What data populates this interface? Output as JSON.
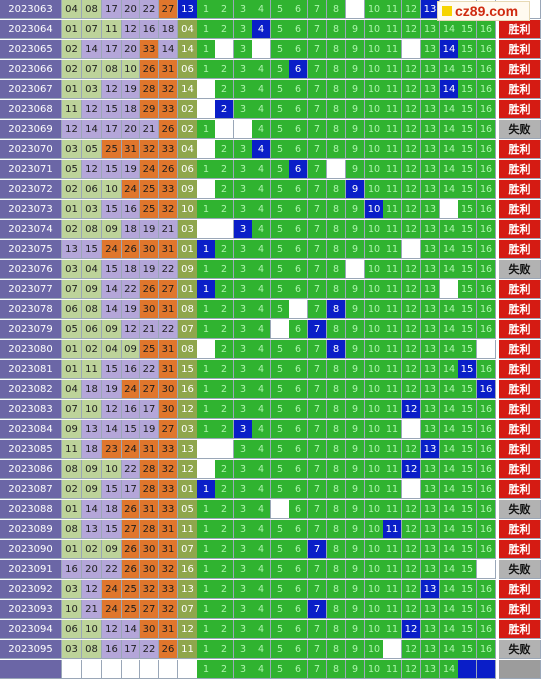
{
  "logo": {
    "text": "cz89.com"
  },
  "labels": {
    "win": "胜利",
    "lose": "失败"
  },
  "colors": {
    "issue_bg": "#6b66a6",
    "zone_sage": "#bdd39a",
    "zone_lavender": "#b4a6d9",
    "zone_orange": "#e0762c",
    "zone_olive": "#8fa64c",
    "blue": "#0a1ec8",
    "green": "#30b330",
    "win": "#d51b13",
    "lose": "#b2b2b2"
  },
  "header_row": {
    "issue": "2023063",
    "balls": [
      "04",
      "08",
      "17",
      "20",
      "22",
      "27"
    ],
    "blue": "13",
    "cells": [
      {
        "n": "1"
      },
      {
        "n": "2"
      },
      {
        "n": "3"
      },
      {
        "n": "4"
      },
      {
        "n": "5"
      },
      {
        "n": "6"
      },
      {
        "n": "7"
      },
      {
        "n": "8"
      },
      {
        "n": "",
        "empty": true
      },
      {
        "n": "10"
      },
      {
        "n": "11"
      },
      {
        "n": "12"
      },
      {
        "n": "13",
        "hit": true
      },
      {
        "n": "",
        "empty": true
      },
      {
        "n": "",
        "empty": true
      },
      {
        "n": "",
        "empty": true
      }
    ],
    "result": ""
  },
  "rows": [
    {
      "issue": "2023064",
      "balls": [
        "01",
        "07",
        "11",
        "12",
        "16",
        "18"
      ],
      "blue": "04",
      "hit": 4,
      "empties": [],
      "result": "win"
    },
    {
      "issue": "2023065",
      "balls": [
        "02",
        "14",
        "17",
        "20",
        "33",
        "14"
      ],
      "blue": "14",
      "hit": 14,
      "empties": [
        2,
        4,
        12
      ],
      "result": "win"
    },
    {
      "issue": "2023066",
      "balls": [
        "02",
        "07",
        "08",
        "10",
        "26",
        "31"
      ],
      "blue": "06",
      "hit": 6,
      "empties": [],
      "result": "win"
    },
    {
      "issue": "2023067",
      "balls": [
        "01",
        "03",
        "12",
        "19",
        "28",
        "32"
      ],
      "blue": "14",
      "hit": 14,
      "empties": [
        1
      ],
      "result": "win"
    },
    {
      "issue": "2023068",
      "balls": [
        "11",
        "12",
        "15",
        "18",
        "29",
        "33"
      ],
      "blue": "02",
      "hit": 2,
      "empties": [
        1
      ],
      "result": "win"
    },
    {
      "issue": "2023069",
      "balls": [
        "12",
        "14",
        "17",
        "20",
        "21",
        "26"
      ],
      "blue": "02",
      "hit": 0,
      "empties": [
        2,
        3
      ],
      "result": "lose"
    },
    {
      "issue": "2023070",
      "balls": [
        "03",
        "05",
        "25",
        "31",
        "32",
        "33"
      ],
      "blue": "04",
      "hit": 4,
      "empties": [
        1
      ],
      "result": "win"
    },
    {
      "issue": "2023071",
      "balls": [
        "05",
        "12",
        "15",
        "19",
        "24",
        "26"
      ],
      "blue": "06",
      "hit": 6,
      "empties": [
        8
      ],
      "result": "win"
    },
    {
      "issue": "2023072",
      "balls": [
        "02",
        "06",
        "10",
        "24",
        "25",
        "33"
      ],
      "blue": "09",
      "hit": 9,
      "empties": [
        1
      ],
      "result": "win"
    },
    {
      "issue": "2023073",
      "balls": [
        "01",
        "03",
        "15",
        "16",
        "25",
        "32"
      ],
      "blue": "10",
      "hit": 10,
      "empties": [
        14
      ],
      "result": "win"
    },
    {
      "issue": "2023074",
      "balls": [
        "02",
        "08",
        "09",
        "18",
        "19",
        "21"
      ],
      "blue": "03",
      "hit": 3,
      "empties": [
        1,
        2
      ],
      "result": "win"
    },
    {
      "issue": "2023075",
      "balls": [
        "13",
        "15",
        "24",
        "26",
        "30",
        "31"
      ],
      "blue": "01",
      "hit": 1,
      "empties": [
        12
      ],
      "result": "win"
    },
    {
      "issue": "2023076",
      "balls": [
        "03",
        "04",
        "15",
        "18",
        "19",
        "22"
      ],
      "blue": "09",
      "hit": 0,
      "empties": [
        9
      ],
      "result": "lose"
    },
    {
      "issue": "2023077",
      "balls": [
        "07",
        "09",
        "14",
        "22",
        "26",
        "27"
      ],
      "blue": "01",
      "hit": 1,
      "empties": [
        14
      ],
      "result": "win"
    },
    {
      "issue": "2023078",
      "balls": [
        "06",
        "08",
        "14",
        "19",
        "30",
        "31"
      ],
      "blue": "08",
      "hit": 8,
      "empties": [
        6
      ],
      "result": "win"
    },
    {
      "issue": "2023079",
      "balls": [
        "05",
        "06",
        "09",
        "12",
        "21",
        "22"
      ],
      "blue": "07",
      "hit": 7,
      "empties": [
        5
      ],
      "result": "win"
    },
    {
      "issue": "2023080",
      "balls": [
        "01",
        "02",
        "04",
        "09",
        "25",
        "31"
      ],
      "blue": "08",
      "hit": 8,
      "empties": [
        1,
        16
      ],
      "result": "win"
    },
    {
      "issue": "2023081",
      "balls": [
        "01",
        "11",
        "15",
        "16",
        "22",
        "31"
      ],
      "blue": "15",
      "hit": 15,
      "empties": [],
      "result": "win"
    },
    {
      "issue": "2023082",
      "balls": [
        "04",
        "18",
        "19",
        "24",
        "27",
        "30"
      ],
      "blue": "16",
      "hit": 16,
      "empties": [],
      "result": "win"
    },
    {
      "issue": "2023083",
      "balls": [
        "07",
        "10",
        "12",
        "16",
        "17",
        "30"
      ],
      "blue": "12",
      "hit": 12,
      "empties": [],
      "result": "win"
    },
    {
      "issue": "2023084",
      "balls": [
        "09",
        "13",
        "14",
        "15",
        "19",
        "27"
      ],
      "blue": "03",
      "hit": 3,
      "empties": [
        12
      ],
      "result": "win"
    },
    {
      "issue": "2023085",
      "balls": [
        "11",
        "18",
        "23",
        "24",
        "31",
        "33"
      ],
      "blue": "13",
      "hit": 13,
      "empties": [
        1,
        2
      ],
      "result": "win"
    },
    {
      "issue": "2023086",
      "balls": [
        "08",
        "09",
        "10",
        "22",
        "28",
        "32"
      ],
      "blue": "12",
      "hit": 12,
      "empties": [
        1
      ],
      "result": "win"
    },
    {
      "issue": "2023087",
      "balls": [
        "02",
        "09",
        "15",
        "17",
        "28",
        "33"
      ],
      "blue": "01",
      "hit": 1,
      "empties": [
        12
      ],
      "result": "win"
    },
    {
      "issue": "2023088",
      "balls": [
        "01",
        "14",
        "18",
        "26",
        "31",
        "33"
      ],
      "blue": "05",
      "hit": 0,
      "empties": [
        5
      ],
      "result": "lose"
    },
    {
      "issue": "2023089",
      "balls": [
        "08",
        "13",
        "15",
        "27",
        "28",
        "31"
      ],
      "blue": "11",
      "hit": 11,
      "empties": [],
      "result": "win"
    },
    {
      "issue": "2023090",
      "balls": [
        "01",
        "02",
        "09",
        "26",
        "30",
        "31"
      ],
      "blue": "07",
      "hit": 7,
      "empties": [],
      "result": "win"
    },
    {
      "issue": "2023091",
      "balls": [
        "16",
        "20",
        "22",
        "26",
        "30",
        "32"
      ],
      "blue": "16",
      "hit": 0,
      "empties": [
        16
      ],
      "result": "lose"
    },
    {
      "issue": "2023092",
      "balls": [
        "03",
        "12",
        "24",
        "25",
        "32",
        "33"
      ],
      "blue": "13",
      "hit": 13,
      "empties": [],
      "result": "win"
    },
    {
      "issue": "2023093",
      "balls": [
        "10",
        "21",
        "24",
        "25",
        "27",
        "32"
      ],
      "blue": "07",
      "hit": 7,
      "empties": [],
      "result": "win"
    },
    {
      "issue": "2023094",
      "balls": [
        "06",
        "10",
        "12",
        "14",
        "30",
        "31"
      ],
      "blue": "12",
      "hit": 12,
      "empties": [],
      "result": "win"
    },
    {
      "issue": "2023095",
      "balls": [
        "03",
        "08",
        "16",
        "17",
        "22",
        "26"
      ],
      "blue": "11",
      "hit": 0,
      "empties": [
        11
      ],
      "result": "lose"
    }
  ],
  "footer_row": {
    "issue": "",
    "cells": [
      "1",
      "2",
      "3",
      "4",
      "5",
      "6",
      "7",
      "8",
      "9",
      "10",
      "11",
      "12",
      "13",
      "14",
      "",
      ""
    ],
    "blue_tail": [
      15,
      16
    ],
    "result": ""
  }
}
